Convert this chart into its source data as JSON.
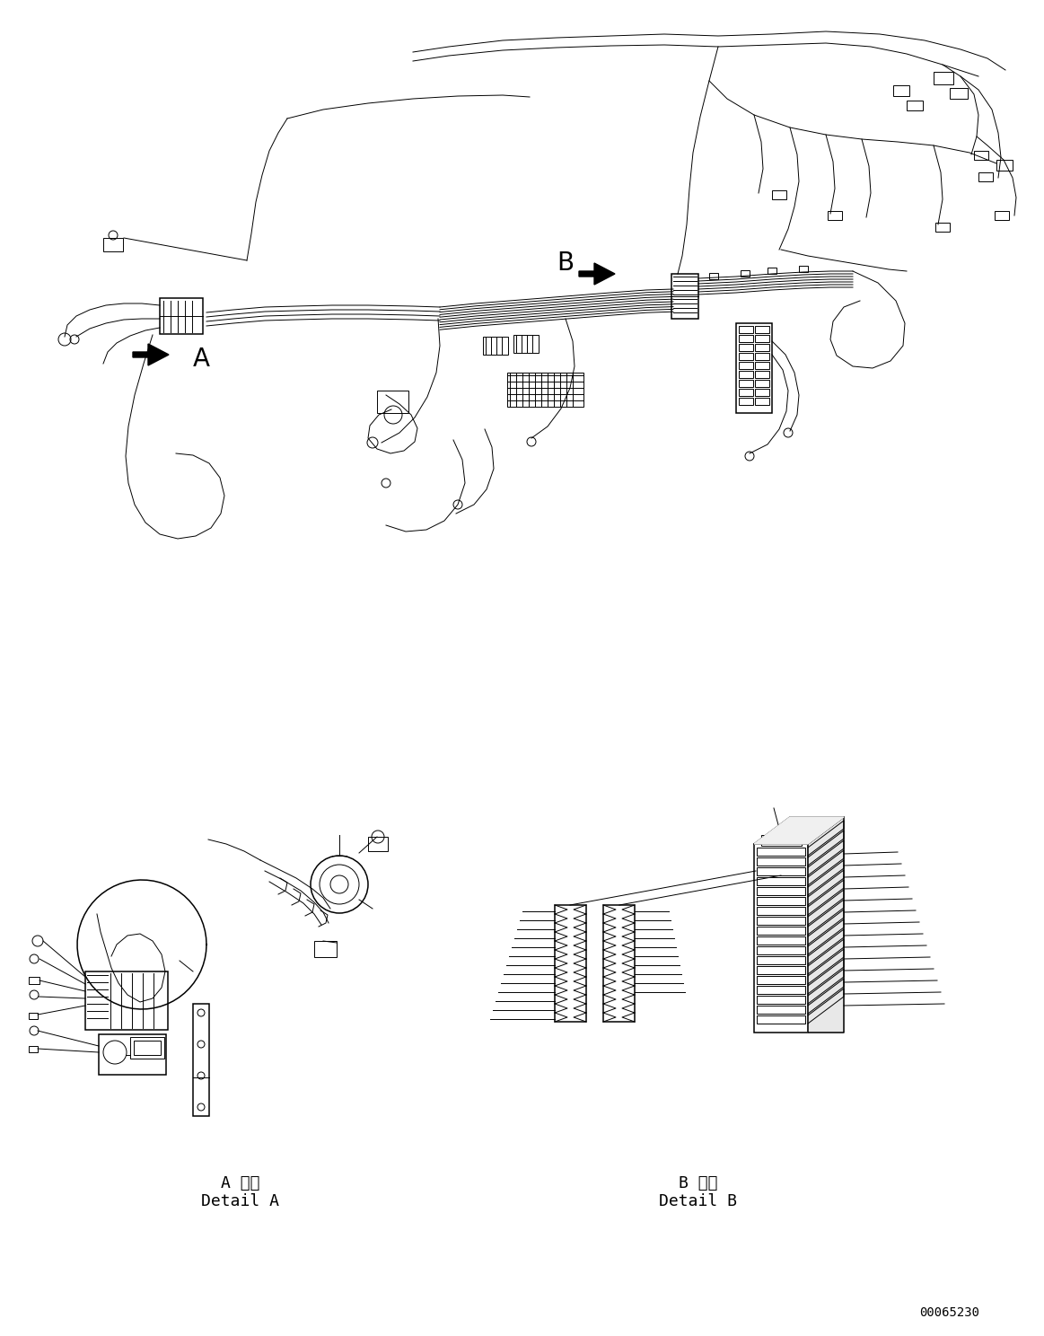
{
  "background_color": "#ffffff",
  "line_color": "#000000",
  "fig_width": 11.63,
  "fig_height": 14.88,
  "dpi": 100,
  "label_A": "A",
  "label_B": "B",
  "detail_A_japanese": "A 詳細",
  "detail_A_english": "Detail A",
  "detail_B_japanese": "B 詳細",
  "detail_B_english": "Detail B",
  "part_number": "00065230",
  "font_size_labels": 16,
  "font_size_detail": 13,
  "font_size_partno": 10
}
